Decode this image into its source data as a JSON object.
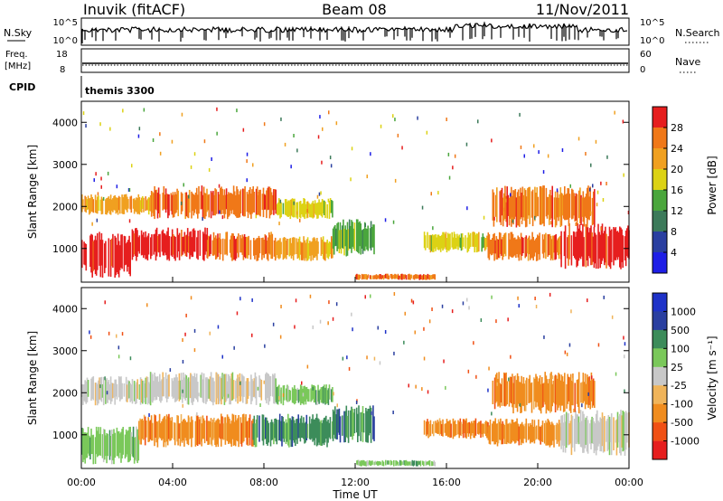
{
  "header": {
    "station": "Inuvik (fitACF)",
    "beam": "Beam 08",
    "date": "11/Nov/2011"
  },
  "aux": {
    "nsky_label": "N.Sky",
    "nsky_ticks": [
      "10^5",
      "10^0"
    ],
    "nsearch_label": "N.Search",
    "nsearch_ticks": [
      "10^5",
      "10^0"
    ],
    "freq_label": "Freq.",
    "freq_unit": "[MHz]",
    "freq_ticks": [
      "18",
      "8"
    ],
    "nave_label": "Nave",
    "nave_ticks": [
      "60",
      "0"
    ],
    "cpid_label": "CPID",
    "cpid_value": "themis 3300"
  },
  "colors": {
    "power_scale": [
      "#1e1ee6",
      "#2a3fa0",
      "#3c7a5a",
      "#4aa63c",
      "#dcd214",
      "#f0a020",
      "#f07818",
      "#e61e1e"
    ],
    "velocity_scale": [
      "#e61e1e",
      "#f05014",
      "#f08c1e",
      "#f0b45a",
      "#c8c8c8",
      "#7ac85a",
      "#3c8c5a",
      "#2a3fa0",
      "#1e32c8"
    ]
  },
  "chart_data": [
    {
      "type": "heatmap",
      "name": "power",
      "ylabel": "Slant Range [km]",
      "ylim": [
        200,
        4500
      ],
      "yticks": [
        "4000",
        "3000",
        "2000",
        "1000"
      ],
      "xlim": [
        "00:00",
        "24:00"
      ],
      "colorbar_label": "Power [dB]",
      "colorbar_ticks": [
        "28",
        "24",
        "20",
        "16",
        "12",
        "8",
        "4"
      ],
      "bands": [
        {
          "t0": 0.0,
          "t1": 2.2,
          "r0": 300,
          "r1": 1400,
          "level": 7
        },
        {
          "t0": 2.2,
          "t1": 5.5,
          "r0": 700,
          "r1": 1500,
          "level": 7
        },
        {
          "t0": 5.5,
          "t1": 8.5,
          "r0": 700,
          "r1": 1400,
          "level": 6
        },
        {
          "t0": 8.5,
          "t1": 11.0,
          "r0": 700,
          "r1": 1300,
          "level": 5
        },
        {
          "t0": 11.0,
          "t1": 12.8,
          "r0": 800,
          "r1": 1700,
          "level": 3
        },
        {
          "t0": 0.0,
          "t1": 3.0,
          "r0": 1800,
          "r1": 2300,
          "level": 5
        },
        {
          "t0": 3.0,
          "t1": 8.5,
          "r0": 1700,
          "r1": 2500,
          "level": 6
        },
        {
          "t0": 8.5,
          "t1": 11.0,
          "r0": 1700,
          "r1": 2200,
          "level": 4
        },
        {
          "t0": 15.0,
          "t1": 17.8,
          "r0": 900,
          "r1": 1400,
          "level": 4
        },
        {
          "t0": 17.8,
          "t1": 21.0,
          "r0": 700,
          "r1": 1400,
          "level": 6
        },
        {
          "t0": 21.0,
          "t1": 24.0,
          "r0": 500,
          "r1": 1600,
          "level": 7
        },
        {
          "t0": 18.0,
          "t1": 22.5,
          "r0": 1500,
          "r1": 2500,
          "level": 6
        },
        {
          "t0": 12.0,
          "t1": 15.5,
          "r0": 250,
          "r1": 400,
          "level": 6
        }
      ]
    },
    {
      "type": "heatmap",
      "name": "velocity",
      "ylabel": "Slant Range [km]",
      "ylim": [
        200,
        4500
      ],
      "yticks": [
        "4000",
        "3000",
        "2000",
        "1000"
      ],
      "xlabel": "Time UT",
      "xlim": [
        "00:00",
        "24:00"
      ],
      "xticks": [
        "00:00",
        "04:00",
        "08:00",
        "12:00",
        "16:00",
        "20:00",
        "00:00"
      ],
      "colorbar_label": "Velocity [m s⁻¹]",
      "colorbar_ticks": [
        "1000",
        "500",
        "100",
        "25",
        "-25",
        "-100",
        "-500",
        "-1000"
      ],
      "bands": [
        {
          "t0": 0.0,
          "t1": 2.5,
          "r0": 300,
          "r1": 1200,
          "level": 5
        },
        {
          "t0": 2.5,
          "t1": 7.5,
          "r0": 700,
          "r1": 1500,
          "level": 2
        },
        {
          "t0": 7.5,
          "t1": 11.0,
          "r0": 700,
          "r1": 1500,
          "level": 6
        },
        {
          "t0": 11.0,
          "t1": 12.8,
          "r0": 800,
          "r1": 1700,
          "level": 6
        },
        {
          "t0": 0.0,
          "t1": 3.0,
          "r0": 1700,
          "r1": 2400,
          "level": 4
        },
        {
          "t0": 3.0,
          "t1": 8.5,
          "r0": 1700,
          "r1": 2500,
          "level": 4
        },
        {
          "t0": 8.5,
          "t1": 11.0,
          "r0": 1700,
          "r1": 2200,
          "level": 5
        },
        {
          "t0": 15.0,
          "t1": 17.8,
          "r0": 900,
          "r1": 1400,
          "level": 2
        },
        {
          "t0": 17.8,
          "t1": 21.0,
          "r0": 700,
          "r1": 1400,
          "level": 2
        },
        {
          "t0": 21.0,
          "t1": 24.0,
          "r0": 500,
          "r1": 1600,
          "level": 4
        },
        {
          "t0": 18.0,
          "t1": 22.5,
          "r0": 1500,
          "r1": 2500,
          "level": 2
        },
        {
          "t0": 12.0,
          "t1": 15.5,
          "r0": 250,
          "r1": 400,
          "level": 5
        }
      ]
    }
  ]
}
